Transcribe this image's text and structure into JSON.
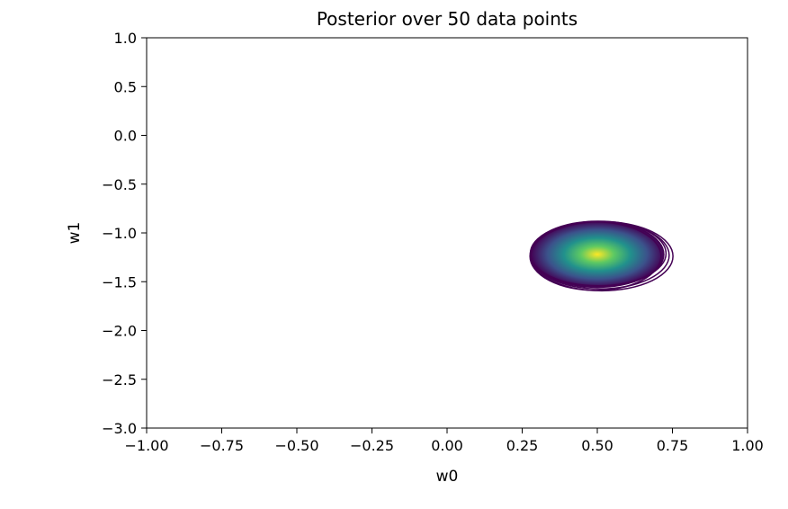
{
  "chart_data": {
    "type": "contour",
    "title": "Posterior over 50 data points",
    "xlabel": "w0",
    "ylabel": "w1",
    "xlim": [
      -1.0,
      1.0
    ],
    "ylim": [
      -3.0,
      1.0
    ],
    "x_ticks": [
      -1.0,
      -0.75,
      -0.5,
      -0.25,
      0.0,
      0.25,
      0.5,
      0.75,
      1.0
    ],
    "x_tick_labels": [
      "−1.00",
      "−0.75",
      "−0.50",
      "−0.25",
      "0.00",
      "0.25",
      "0.50",
      "0.75",
      "1.00"
    ],
    "y_ticks": [
      1.0,
      0.5,
      0.0,
      -0.5,
      -1.0,
      -1.5,
      -2.0,
      -2.5,
      -3.0
    ],
    "y_tick_labels": [
      "1.0",
      "0.5",
      "0.0",
      "−0.5",
      "−1.0",
      "−1.5",
      "−2.0",
      "−2.5",
      "−3.0"
    ],
    "distribution": {
      "mean": [
        0.5,
        -1.22
      ],
      "std": [
        0.082,
        0.125
      ]
    },
    "colormap": "viridis",
    "colormap_stops": [
      "#440154",
      "#3b528b",
      "#21918c",
      "#5ec962",
      "#fde725"
    ],
    "outline_color": "#440154",
    "grid": false,
    "legend": "none"
  }
}
